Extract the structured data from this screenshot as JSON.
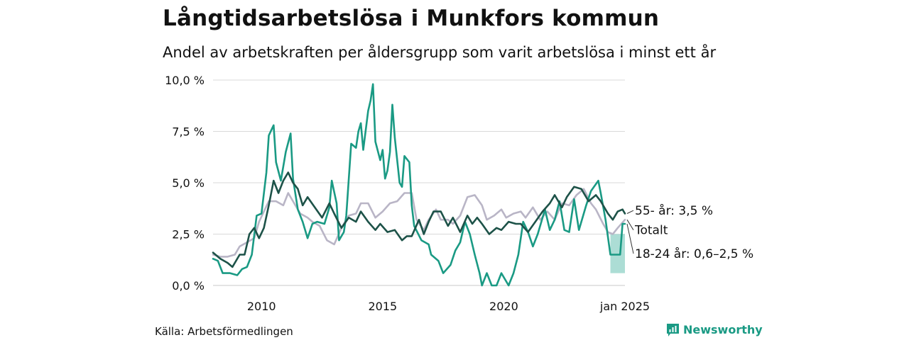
{
  "title": "Långtidsarbetslösa i Munkfors kommun",
  "subtitle": "Andel av arbetskraften per åldersgrupp som varit arbetslösa i minst ett år",
  "source": "Källa: Arbetsförmedlingen",
  "brand": "Newsworthy",
  "colors": {
    "young": "#1a9a84",
    "young_band": "#a3d9d0",
    "old": "#1d5248",
    "total": "#b9b5c6",
    "grid": "#d9d9d9",
    "brand": "#1a9a84"
  },
  "chart_data": {
    "type": "line",
    "title": "Långtidsarbetslösa i Munkfors kommun",
    "xlabel": "",
    "ylabel": "",
    "ylim": [
      0,
      10
    ],
    "xlim": [
      2008.0,
      2025.0
    ],
    "y_ticks": [
      {
        "value": 0,
        "label": "0,0 %"
      },
      {
        "value": 2.5,
        "label": "2,5 %"
      },
      {
        "value": 5,
        "label": "5,0 %"
      },
      {
        "value": 7.5,
        "label": "7,5 %"
      },
      {
        "value": 10,
        "label": "10,0 %"
      }
    ],
    "x_ticks": [
      {
        "value": 2010,
        "label": "2010"
      },
      {
        "value": 2015,
        "label": "2015"
      },
      {
        "value": 2020,
        "label": "2020"
      },
      {
        "value": 2025,
        "label": "jan 2025"
      }
    ],
    "series": [
      {
        "name": "Totalt",
        "key": "total",
        "label": "Totalt",
        "label_y": 2.7,
        "points": [
          [
            2008.0,
            1.5
          ],
          [
            2008.3,
            1.4
          ],
          [
            2008.6,
            1.4
          ],
          [
            2008.9,
            1.5
          ],
          [
            2009.1,
            1.9
          ],
          [
            2009.4,
            2.1
          ],
          [
            2009.7,
            2.3
          ],
          [
            2009.9,
            3.1
          ],
          [
            2010.1,
            3.6
          ],
          [
            2010.3,
            4.1
          ],
          [
            2010.6,
            4.1
          ],
          [
            2010.9,
            3.9
          ],
          [
            2011.1,
            4.5
          ],
          [
            2011.3,
            4.1
          ],
          [
            2011.6,
            3.5
          ],
          [
            2011.9,
            3.3
          ],
          [
            2012.1,
            3.1
          ],
          [
            2012.4,
            2.9
          ],
          [
            2012.7,
            2.2
          ],
          [
            2013.0,
            2.0
          ],
          [
            2013.3,
            2.8
          ],
          [
            2013.6,
            3.4
          ],
          [
            2013.9,
            3.5
          ],
          [
            2014.1,
            4.0
          ],
          [
            2014.4,
            4.0
          ],
          [
            2014.7,
            3.3
          ],
          [
            2015.0,
            3.6
          ],
          [
            2015.3,
            4.0
          ],
          [
            2015.6,
            4.1
          ],
          [
            2015.9,
            4.5
          ],
          [
            2016.2,
            4.5
          ],
          [
            2016.4,
            3.2
          ],
          [
            2016.7,
            2.7
          ],
          [
            2016.9,
            3.2
          ],
          [
            2017.2,
            3.7
          ],
          [
            2017.4,
            3.2
          ],
          [
            2017.7,
            3.2
          ],
          [
            2017.9,
            3.0
          ],
          [
            2018.2,
            3.4
          ],
          [
            2018.5,
            4.3
          ],
          [
            2018.8,
            4.4
          ],
          [
            2019.1,
            3.9
          ],
          [
            2019.3,
            3.2
          ],
          [
            2019.6,
            3.4
          ],
          [
            2019.9,
            3.7
          ],
          [
            2020.1,
            3.3
          ],
          [
            2020.4,
            3.5
          ],
          [
            2020.7,
            3.6
          ],
          [
            2020.9,
            3.3
          ],
          [
            2021.2,
            3.8
          ],
          [
            2021.5,
            3.2
          ],
          [
            2021.8,
            3.6
          ],
          [
            2022.1,
            3.2
          ],
          [
            2022.4,
            4.0
          ],
          [
            2022.7,
            3.9
          ],
          [
            2023.0,
            4.4
          ],
          [
            2023.3,
            4.7
          ],
          [
            2023.6,
            4.0
          ],
          [
            2023.8,
            3.7
          ],
          [
            2024.1,
            3.0
          ],
          [
            2024.3,
            2.6
          ],
          [
            2024.5,
            2.5
          ],
          [
            2024.7,
            2.8
          ],
          [
            2025.0,
            3.2
          ]
        ]
      },
      {
        "name": "18-24 år",
        "key": "young",
        "label": "18-24 år: 0,6–2,5 %",
        "label_y": 1.55,
        "band": [
          [
            2024.4,
            0.6,
            2.5
          ],
          [
            2025.0,
            0.6,
            2.5
          ]
        ],
        "points": [
          [
            2008.0,
            1.3
          ],
          [
            2008.2,
            1.2
          ],
          [
            2008.4,
            0.6
          ],
          [
            2008.7,
            0.6
          ],
          [
            2009.0,
            0.5
          ],
          [
            2009.2,
            0.8
          ],
          [
            2009.4,
            0.9
          ],
          [
            2009.6,
            1.5
          ],
          [
            2009.8,
            3.4
          ],
          [
            2010.0,
            3.5
          ],
          [
            2010.2,
            5.5
          ],
          [
            2010.3,
            7.3
          ],
          [
            2010.5,
            7.8
          ],
          [
            2010.6,
            6.0
          ],
          [
            2010.8,
            5.1
          ],
          [
            2011.0,
            6.5
          ],
          [
            2011.2,
            7.4
          ],
          [
            2011.3,
            5.2
          ],
          [
            2011.5,
            3.7
          ],
          [
            2011.7,
            3.1
          ],
          [
            2011.9,
            2.3
          ],
          [
            2012.1,
            3.0
          ],
          [
            2012.3,
            3.1
          ],
          [
            2012.6,
            3.0
          ],
          [
            2012.8,
            3.8
          ],
          [
            2012.9,
            5.1
          ],
          [
            2013.1,
            4.0
          ],
          [
            2013.2,
            2.2
          ],
          [
            2013.4,
            2.6
          ],
          [
            2013.5,
            3.4
          ],
          [
            2013.7,
            6.9
          ],
          [
            2013.9,
            6.7
          ],
          [
            2014.0,
            7.5
          ],
          [
            2014.1,
            7.9
          ],
          [
            2014.2,
            6.6
          ],
          [
            2014.4,
            8.5
          ],
          [
            2014.5,
            9.0
          ],
          [
            2014.6,
            9.8
          ],
          [
            2014.7,
            7.0
          ],
          [
            2014.9,
            6.1
          ],
          [
            2015.0,
            6.6
          ],
          [
            2015.1,
            5.2
          ],
          [
            2015.2,
            5.6
          ],
          [
            2015.3,
            6.5
          ],
          [
            2015.4,
            8.8
          ],
          [
            2015.5,
            7.2
          ],
          [
            2015.7,
            5.0
          ],
          [
            2015.8,
            4.8
          ],
          [
            2015.9,
            6.3
          ],
          [
            2016.1,
            6.0
          ],
          [
            2016.2,
            3.9
          ],
          [
            2016.3,
            2.9
          ],
          [
            2016.6,
            2.2
          ],
          [
            2016.9,
            2.0
          ],
          [
            2017.0,
            1.5
          ],
          [
            2017.3,
            1.2
          ],
          [
            2017.5,
            0.6
          ],
          [
            2017.8,
            1.0
          ],
          [
            2018.0,
            1.7
          ],
          [
            2018.2,
            2.1
          ],
          [
            2018.4,
            3.1
          ],
          [
            2018.6,
            2.5
          ],
          [
            2018.8,
            1.5
          ],
          [
            2019.0,
            0.6
          ],
          [
            2019.1,
            0.0
          ],
          [
            2019.3,
            0.6
          ],
          [
            2019.5,
            0.0
          ],
          [
            2019.7,
            0.0
          ],
          [
            2019.9,
            0.6
          ],
          [
            2020.2,
            0.0
          ],
          [
            2020.4,
            0.6
          ],
          [
            2020.6,
            1.5
          ],
          [
            2020.8,
            3.1
          ],
          [
            2021.0,
            2.6
          ],
          [
            2021.2,
            1.9
          ],
          [
            2021.4,
            2.5
          ],
          [
            2021.7,
            3.7
          ],
          [
            2021.9,
            2.7
          ],
          [
            2022.1,
            3.2
          ],
          [
            2022.3,
            4.1
          ],
          [
            2022.5,
            2.7
          ],
          [
            2022.7,
            2.6
          ],
          [
            2022.9,
            4.2
          ],
          [
            2023.1,
            2.7
          ],
          [
            2023.4,
            3.9
          ],
          [
            2023.6,
            4.6
          ],
          [
            2023.9,
            5.1
          ],
          [
            2024.0,
            4.5
          ],
          [
            2024.2,
            3.2
          ],
          [
            2024.4,
            1.5
          ],
          [
            2024.6,
            1.5
          ],
          [
            2024.8,
            1.5
          ],
          [
            2024.9,
            3.0
          ],
          [
            2025.0,
            3.0
          ]
        ]
      },
      {
        "name": "55- år",
        "key": "old",
        "label": "55- år: 3,5 %",
        "label_y": 3.65,
        "points": [
          [
            2008.0,
            1.6
          ],
          [
            2008.3,
            1.3
          ],
          [
            2008.6,
            1.1
          ],
          [
            2008.8,
            0.9
          ],
          [
            2009.1,
            1.5
          ],
          [
            2009.3,
            1.5
          ],
          [
            2009.5,
            2.5
          ],
          [
            2009.7,
            2.8
          ],
          [
            2009.9,
            2.3
          ],
          [
            2010.1,
            2.8
          ],
          [
            2010.3,
            3.9
          ],
          [
            2010.5,
            5.1
          ],
          [
            2010.7,
            4.5
          ],
          [
            2010.9,
            5.1
          ],
          [
            2011.1,
            5.5
          ],
          [
            2011.3,
            5.0
          ],
          [
            2011.5,
            4.7
          ],
          [
            2011.7,
            3.9
          ],
          [
            2011.9,
            4.3
          ],
          [
            2012.2,
            3.8
          ],
          [
            2012.5,
            3.3
          ],
          [
            2012.8,
            4.0
          ],
          [
            2013.0,
            3.5
          ],
          [
            2013.3,
            2.8
          ],
          [
            2013.6,
            3.3
          ],
          [
            2013.9,
            3.1
          ],
          [
            2014.1,
            3.6
          ],
          [
            2014.4,
            3.1
          ],
          [
            2014.7,
            2.7
          ],
          [
            2014.9,
            3.0
          ],
          [
            2015.2,
            2.6
          ],
          [
            2015.5,
            2.7
          ],
          [
            2015.8,
            2.2
          ],
          [
            2016.0,
            2.4
          ],
          [
            2016.2,
            2.4
          ],
          [
            2016.5,
            3.2
          ],
          [
            2016.7,
            2.5
          ],
          [
            2016.9,
            3.1
          ],
          [
            2017.1,
            3.6
          ],
          [
            2017.4,
            3.6
          ],
          [
            2017.7,
            2.9
          ],
          [
            2017.9,
            3.3
          ],
          [
            2018.2,
            2.6
          ],
          [
            2018.5,
            3.4
          ],
          [
            2018.7,
            3.0
          ],
          [
            2018.9,
            3.3
          ],
          [
            2019.1,
            3.0
          ],
          [
            2019.4,
            2.5
          ],
          [
            2019.7,
            2.8
          ],
          [
            2019.9,
            2.7
          ],
          [
            2020.2,
            3.1
          ],
          [
            2020.5,
            3.0
          ],
          [
            2020.7,
            3.0
          ],
          [
            2021.0,
            2.6
          ],
          [
            2021.3,
            3.1
          ],
          [
            2021.6,
            3.6
          ],
          [
            2021.9,
            4.0
          ],
          [
            2022.1,
            4.4
          ],
          [
            2022.4,
            3.8
          ],
          [
            2022.6,
            4.3
          ],
          [
            2022.9,
            4.8
          ],
          [
            2023.2,
            4.7
          ],
          [
            2023.5,
            4.1
          ],
          [
            2023.8,
            4.4
          ],
          [
            2024.0,
            4.1
          ],
          [
            2024.3,
            3.5
          ],
          [
            2024.5,
            3.2
          ],
          [
            2024.7,
            3.6
          ],
          [
            2024.9,
            3.7
          ],
          [
            2025.0,
            3.5
          ]
        ]
      }
    ]
  }
}
